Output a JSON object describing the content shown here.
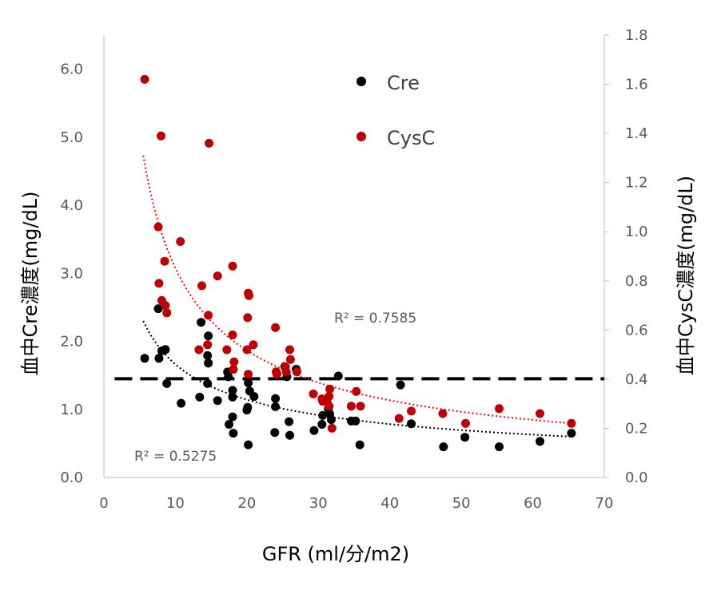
{
  "chart_data": {
    "type": "scatter",
    "xlabel": "GFR (ml/分/m2)",
    "ylabel_left": "血中Cre濃度(mg/dL)",
    "ylabel_right": "血中CysC濃度(mg/dL)",
    "xlim": [
      0,
      70
    ],
    "ylim_left": [
      0,
      6.5
    ],
    "ylim_right": [
      0,
      1.8
    ],
    "x_ticks": [
      "0",
      "10",
      "20",
      "30",
      "40",
      "50",
      "60",
      "70"
    ],
    "y_left_ticks": [
      "0.0",
      "1.0",
      "2.0",
      "3.0",
      "4.0",
      "5.0",
      "6.0"
    ],
    "y_right_ticks": [
      "0.0",
      "0.2",
      "0.4",
      "0.6",
      "0.8",
      "1.0",
      "1.2",
      "1.4",
      "1.6",
      "1.8"
    ],
    "threshold_line": {
      "y_left": 1.45,
      "style": "dashed",
      "color": "#000000"
    },
    "legend": {
      "position": "top-center",
      "entries": [
        "Cre",
        "CysC"
      ]
    },
    "annotations": [
      {
        "text": "R² = 0.7585",
        "series": "CysC"
      },
      {
        "text": "R² = 0.5275",
        "series": "Cre"
      }
    ],
    "series": [
      {
        "name": "Cre",
        "axis": "left",
        "color": "#000000",
        "trendline": {
          "type": "power",
          "x_range": [
            5.5,
            65.5
          ],
          "y_start": 2.3,
          "y_end": 0.6,
          "color": "#000000"
        },
        "points": [
          [
            5.7,
            1.75
          ],
          [
            7.6,
            2.48
          ],
          [
            7.7,
            1.75
          ],
          [
            8.1,
            1.86
          ],
          [
            8.6,
            1.88
          ],
          [
            8.8,
            1.38
          ],
          [
            10.8,
            1.09
          ],
          [
            13.4,
            1.18
          ],
          [
            13.6,
            2.28
          ],
          [
            14.5,
            1.38
          ],
          [
            14.6,
            2.08
          ],
          [
            14.5,
            1.79
          ],
          [
            14.6,
            1.68
          ],
          [
            15.9,
            1.13
          ],
          [
            17.3,
            1.55
          ],
          [
            17.4,
            1.48
          ],
          [
            17.5,
            0.78
          ],
          [
            18.0,
            1.18
          ],
          [
            18.0,
            0.89
          ],
          [
            18.0,
            1.28
          ],
          [
            18.1,
            0.65
          ],
          [
            20.1,
            1.03
          ],
          [
            20.0,
            0.99
          ],
          [
            20.2,
            0.48
          ],
          [
            20.2,
            1.39
          ],
          [
            20.4,
            1.27
          ],
          [
            21.0,
            1.19
          ],
          [
            23.9,
            0.66
          ],
          [
            24.0,
            1.16
          ],
          [
            24.0,
            1.04
          ],
          [
            25.3,
            1.63
          ],
          [
            25.6,
            1.48
          ],
          [
            25.9,
            0.82
          ],
          [
            26.0,
            0.62
          ],
          [
            26.9,
            1.59
          ],
          [
            29.4,
            0.69
          ],
          [
            30.5,
            0.78
          ],
          [
            30.6,
            0.91
          ],
          [
            31.4,
            1.01
          ],
          [
            31.6,
            0.93
          ],
          [
            31.8,
            0.85
          ],
          [
            32.8,
            1.49
          ],
          [
            34.6,
            0.83
          ],
          [
            35.2,
            0.83
          ],
          [
            35.8,
            0.48
          ],
          [
            41.5,
            1.36
          ],
          [
            43.0,
            0.79
          ],
          [
            47.5,
            0.45
          ],
          [
            50.5,
            0.59
          ],
          [
            55.3,
            0.45
          ],
          [
            61.0,
            0.53
          ],
          [
            65.4,
            0.65
          ]
        ]
      },
      {
        "name": "CysC",
        "axis": "right",
        "color": "#c00000",
        "trendline": {
          "type": "power",
          "x_range": [
            5.5,
            65.5
          ],
          "y_start": 1.31,
          "y_end": 0.22,
          "color": "#ff0000"
        },
        "points": [
          [
            5.7,
            1.62
          ],
          [
            7.6,
            1.02
          ],
          [
            7.7,
            0.79
          ],
          [
            8.0,
            1.39
          ],
          [
            8.1,
            0.72
          ],
          [
            8.5,
            0.88
          ],
          [
            8.6,
            0.7
          ],
          [
            8.8,
            0.67
          ],
          [
            10.7,
            0.96
          ],
          [
            13.3,
            0.52
          ],
          [
            13.7,
            0.78
          ],
          [
            14.5,
            0.54
          ],
          [
            14.6,
            0.66
          ],
          [
            14.7,
            1.36
          ],
          [
            15.9,
            0.82
          ],
          [
            17.2,
            0.52
          ],
          [
            18.0,
            0.86
          ],
          [
            18.0,
            0.58
          ],
          [
            18.2,
            0.47
          ],
          [
            18.1,
            0.44
          ],
          [
            20.1,
            0.65
          ],
          [
            20.2,
            0.42
          ],
          [
            20.0,
            0.52
          ],
          [
            20.2,
            0.75
          ],
          [
            20.3,
            0.74
          ],
          [
            20.9,
            0.54
          ],
          [
            24.0,
            0.61
          ],
          [
            24.1,
            0.43
          ],
          [
            24.2,
            0.42
          ],
          [
            25.4,
            0.45
          ],
          [
            25.5,
            0.43
          ],
          [
            26.0,
            0.52
          ],
          [
            26.1,
            0.48
          ],
          [
            27.0,
            0.43
          ],
          [
            29.3,
            0.34
          ],
          [
            30.5,
            0.32
          ],
          [
            30.6,
            0.31
          ],
          [
            31.2,
            0.31
          ],
          [
            31.5,
            0.33
          ],
          [
            31.5,
            0.29
          ],
          [
            31.6,
            0.36
          ],
          [
            31.9,
            0.2
          ],
          [
            34.6,
            0.29
          ],
          [
            35.3,
            0.35
          ],
          [
            35.9,
            0.29
          ],
          [
            41.3,
            0.24
          ],
          [
            43.0,
            0.27
          ],
          [
            47.4,
            0.26
          ],
          [
            50.6,
            0.22
          ],
          [
            55.3,
            0.28
          ],
          [
            61.0,
            0.26
          ],
          [
            65.4,
            0.22
          ]
        ]
      }
    ]
  }
}
